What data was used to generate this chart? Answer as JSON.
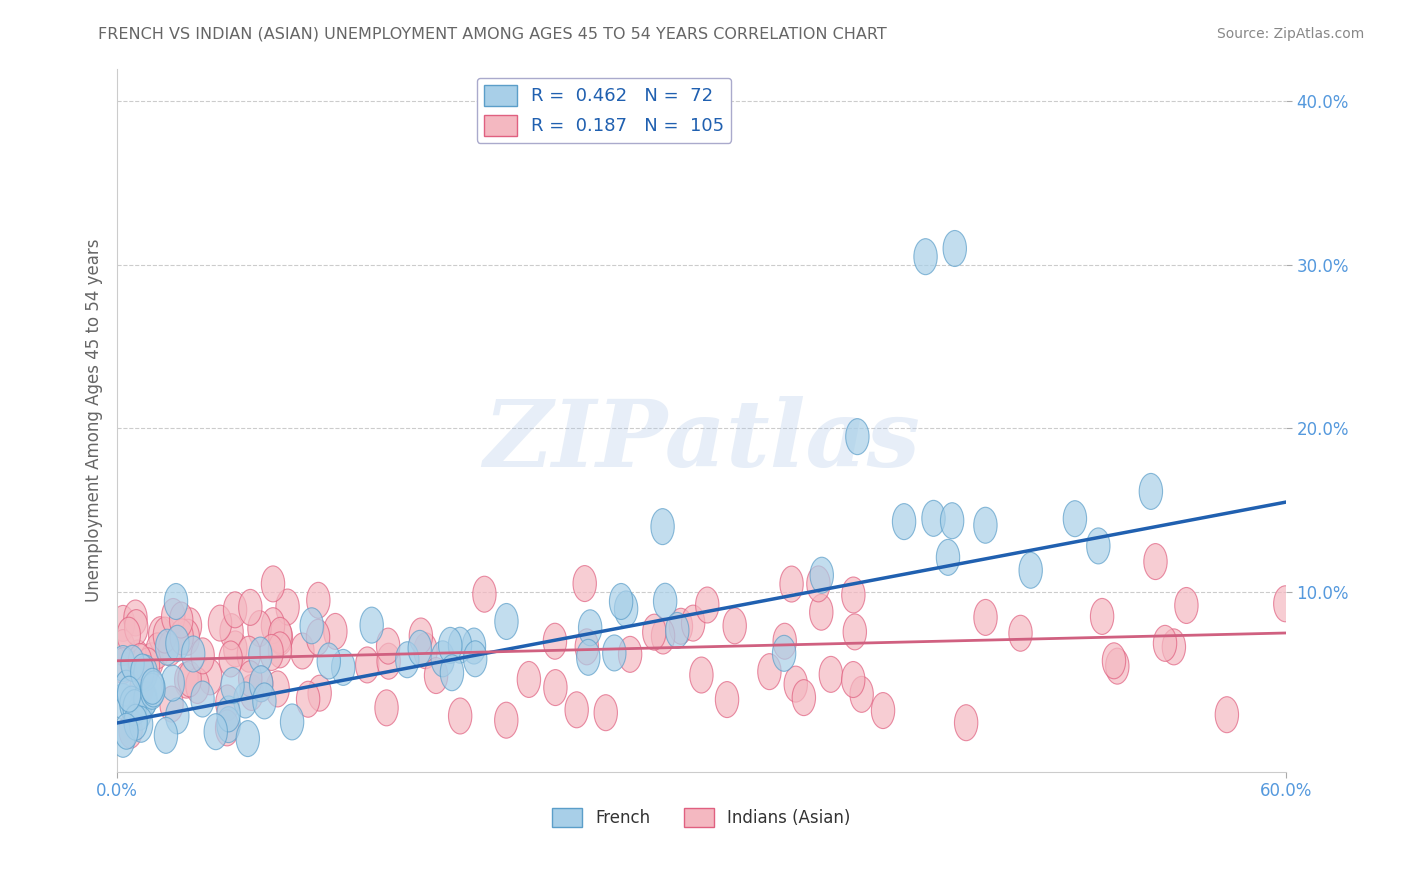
{
  "title": "FRENCH VS INDIAN (ASIAN) UNEMPLOYMENT AMONG AGES 45 TO 54 YEARS CORRELATION CHART",
  "source": "Source: ZipAtlas.com",
  "ylabel": "Unemployment Among Ages 45 to 54 years",
  "xlabel": "",
  "xlim": [
    0.0,
    0.6
  ],
  "ylim": [
    -0.01,
    0.42
  ],
  "xticks_show": [
    0.0,
    0.6
  ],
  "xtick_labels": [
    "0.0%",
    "60.0%"
  ],
  "yticks": [
    0.1,
    0.2,
    0.3,
    0.4
  ],
  "ytick_labels": [
    "10.0%",
    "20.0%",
    "30.0%",
    "40.0%"
  ],
  "grid_yticks": [
    0.1,
    0.2,
    0.3,
    0.4
  ],
  "french_color": "#a8cfe8",
  "french_edge": "#5b9ec9",
  "indian_color": "#f4b8c1",
  "indian_edge": "#e06080",
  "french_R": 0.462,
  "french_N": 72,
  "indian_R": 0.187,
  "indian_N": 105,
  "french_line_color": "#2060b0",
  "indian_line_color": "#d06080",
  "legend_french_label": "French",
  "legend_indian_label": "Indians (Asian)",
  "watermark_text": "ZIPatlas",
  "background_color": "#ffffff",
  "grid_color": "#cccccc",
  "title_color": "#666666",
  "axis_label_color": "#666666",
  "tick_color": "#5599dd",
  "legend_box_color": "#5599dd",
  "legend_text_color": "#2060b0",
  "french_line_start_y": 0.02,
  "french_line_end_y": 0.155,
  "indian_line_start_y": 0.058,
  "indian_line_end_y": 0.075
}
